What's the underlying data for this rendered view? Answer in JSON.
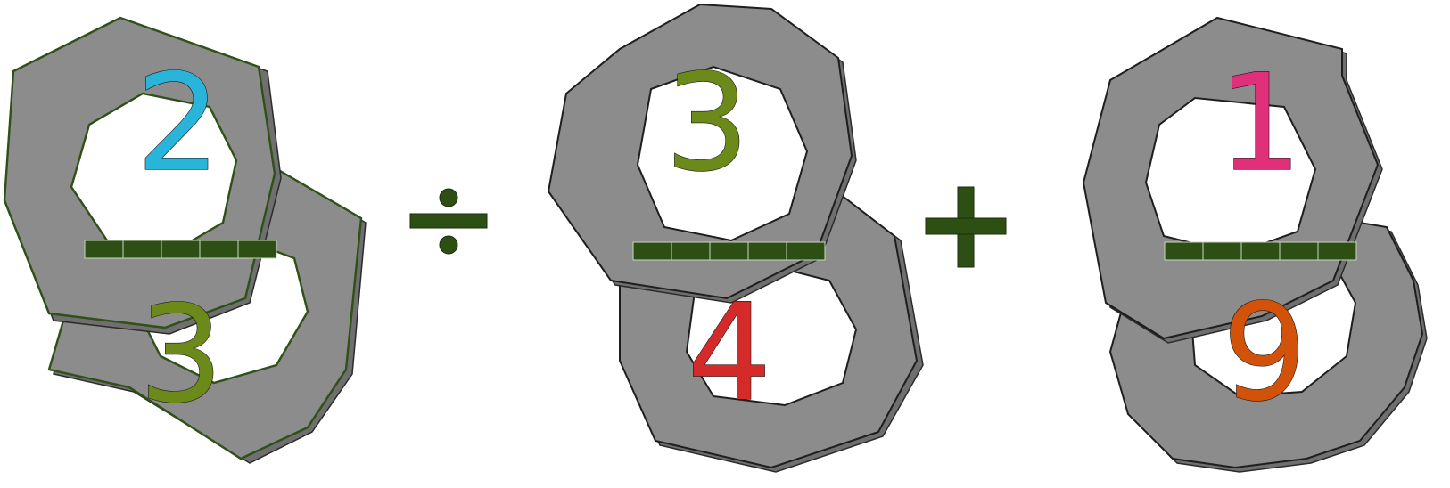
{
  "expression": {
    "fractions": [
      {
        "numerator": "2",
        "denominator": "3",
        "numerator_color": "#29b5d9",
        "denominator_color": "#6b8a1a"
      },
      {
        "numerator": "3",
        "denominator": "4",
        "numerator_color": "#6b8a1a",
        "denominator_color": "#d42a2a"
      },
      {
        "numerator": "1",
        "denominator": "9",
        "numerator_color": "#e0307a",
        "denominator_color": "#d2520a"
      }
    ],
    "operators": [
      {
        "symbol": "division-sign",
        "color": "#2d4f14"
      },
      {
        "symbol": "plus-sign",
        "color": "#2d4f14"
      }
    ],
    "fraction_bar_color": "#2d4f14",
    "gear_color": "#8c8c8c"
  }
}
